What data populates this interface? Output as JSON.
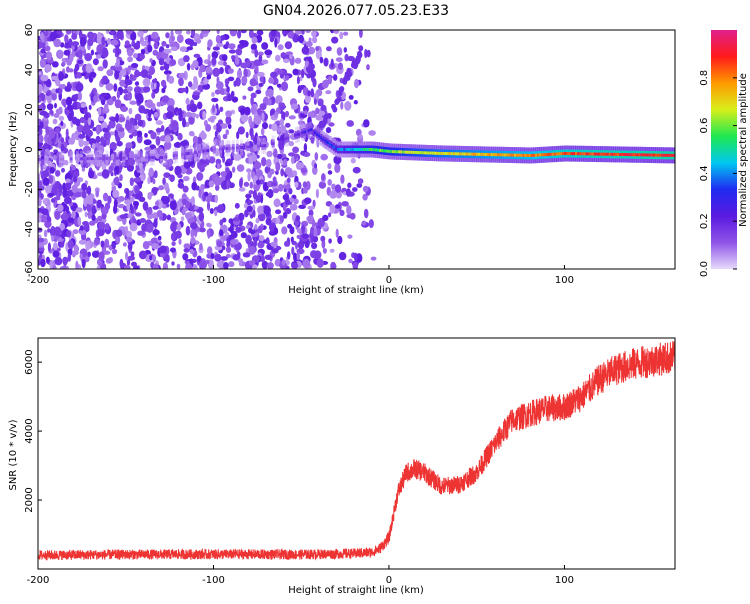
{
  "title": "GN04.2026.077.05.23.E33",
  "chart_data": [
    {
      "type": "heatmap",
      "xlabel": "Height of straight line (km)",
      "ylabel": "Frequency (Hz)",
      "xlim": [
        -200,
        163
      ],
      "ylim": [
        -60,
        60
      ],
      "xticks": [
        "-200",
        "-100",
        "0",
        "100"
      ],
      "yticks": [
        "-60",
        "-40",
        "-20",
        "0",
        "20",
        "40",
        "60"
      ],
      "colorbar": {
        "label": "Normalized spectral amplitude",
        "range": [
          0,
          1
        ],
        "ticks": [
          "0.0",
          "0.2",
          "0.4",
          "0.6",
          "0.8"
        ],
        "colors": [
          "#e6d9fa",
          "#8f54e8",
          "#5a1ae0",
          "#1f2bf2",
          "#00c8f0",
          "#1ee84e",
          "#d8ef1a",
          "#ff9a00",
          "#ff1a1a",
          "#e0208c"
        ]
      },
      "signal_track": [
        {
          "x": -200,
          "y": -5,
          "amp": 0.1
        },
        {
          "x": -130,
          "y": -4,
          "amp": 0.15
        },
        {
          "x": -100,
          "y": 0,
          "amp": 0.15
        },
        {
          "x": -70,
          "y": 2,
          "amp": 0.15
        },
        {
          "x": -45,
          "y": 10,
          "amp": 0.25
        },
        {
          "x": -38,
          "y": 5,
          "amp": 0.3
        },
        {
          "x": -30,
          "y": 0,
          "amp": 0.35
        },
        {
          "x": -10,
          "y": 0,
          "amp": 0.55
        },
        {
          "x": 0,
          "y": -1,
          "amp": 0.6
        },
        {
          "x": 30,
          "y": -2,
          "amp": 0.7
        },
        {
          "x": 80,
          "y": -3,
          "amp": 0.8
        },
        {
          "x": 100,
          "y": -2,
          "amp": 0.85
        },
        {
          "x": 163,
          "y": -3,
          "amp": 0.9
        }
      ],
      "secondary_track": [
        {
          "x": -40,
          "y": 10
        },
        {
          "x": -30,
          "y": 22
        },
        {
          "x": -25,
          "y": 35
        },
        {
          "x": -18,
          "y": 45
        },
        {
          "x": -15,
          "y": 52
        }
      ],
      "noise_extent_x": [
        -200,
        -15
      ]
    },
    {
      "type": "line",
      "xlabel": "Height of straight line (km)",
      "ylabel": "SNR (10 * v/v)",
      "xlim": [
        -200,
        163
      ],
      "ylim": [
        0,
        6700
      ],
      "xticks": [
        "-200",
        "-100",
        "0",
        "100"
      ],
      "yticks": [
        "2000",
        "4000",
        "6000"
      ],
      "color": "#ee3333",
      "series": [
        {
          "x": [
            -200,
            -150,
            -100,
            -50,
            -20,
            -10,
            -5,
            0,
            5,
            10,
            15,
            20,
            30,
            40,
            50,
            60,
            70,
            80,
            90,
            100,
            110,
            120,
            130,
            140,
            150,
            163
          ],
          "y": [
            400,
            420,
            430,
            420,
            450,
            480,
            600,
            900,
            2200,
            2800,
            2900,
            2800,
            2400,
            2450,
            2800,
            3600,
            4300,
            4500,
            4650,
            4700,
            5000,
            5500,
            5800,
            5950,
            6050,
            6150
          ]
        }
      ]
    }
  ]
}
